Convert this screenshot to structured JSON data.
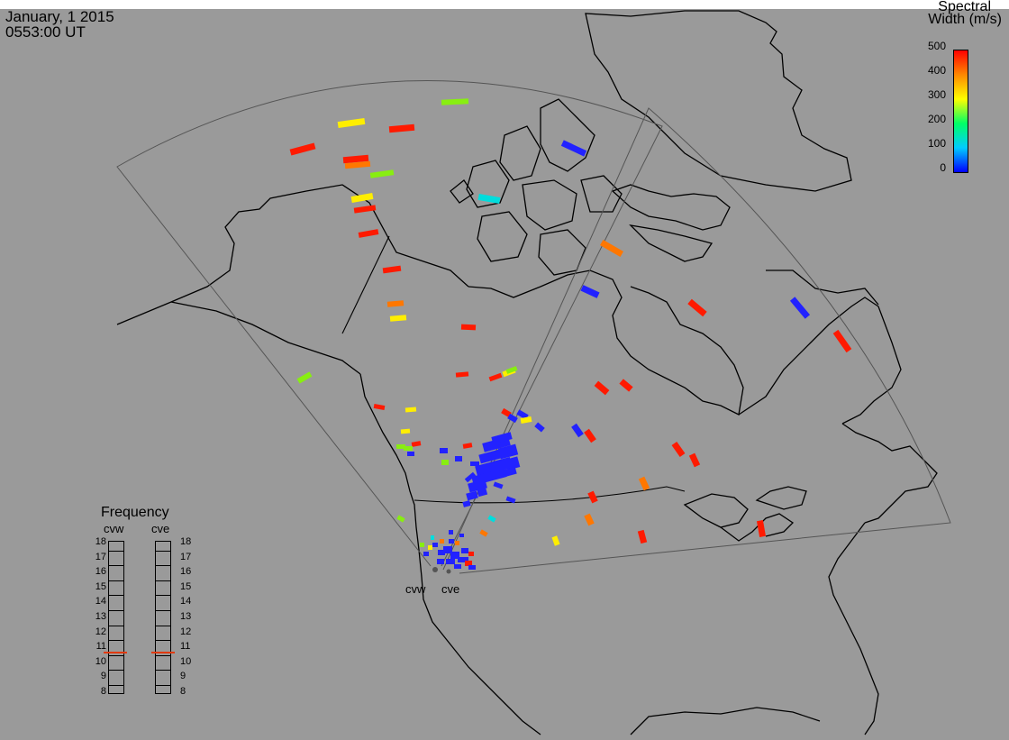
{
  "header": {
    "date": "January, 1 2015",
    "time": "0553:00 UT"
  },
  "colorbar": {
    "title_line1": "Spectral",
    "title_line2": "Width (m/s)",
    "ticks": [
      "500",
      "400",
      "300",
      "200",
      "100",
      "0"
    ],
    "min": 0,
    "max": 500,
    "colors": [
      "#0000ff",
      "#00ccff",
      "#00ff66",
      "#ffff00",
      "#ff8800",
      "#ff0000"
    ]
  },
  "radars": {
    "labels": [
      "cvw",
      "cve"
    ]
  },
  "frequency_panel": {
    "title": "Frequency",
    "columns": [
      "cvw",
      "cve"
    ],
    "ticks": [
      "18",
      "17",
      "16",
      "15",
      "14",
      "13",
      "12",
      "11",
      "10",
      "9",
      "8"
    ],
    "cvw_mhz": 10.7,
    "cve_mhz": 10.7,
    "marker_color": "#e03a10"
  },
  "map_colors": {
    "background": "#9a9a9a",
    "coastline": "#000000",
    "fov_outline": "#555555"
  }
}
